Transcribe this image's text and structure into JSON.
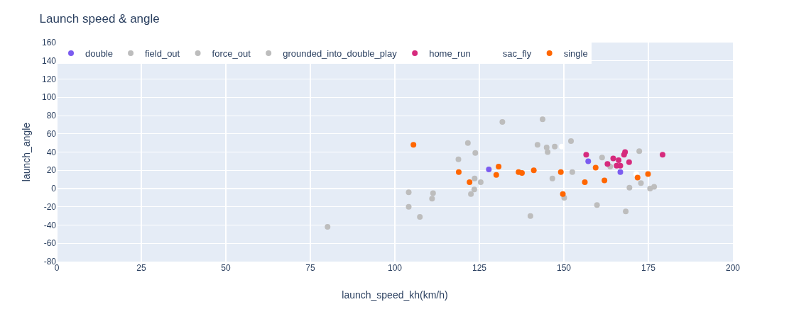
{
  "chart_data": {
    "type": "scatter",
    "title": "Launch speed & angle",
    "xlabel": "launch_speed_kh(km/h)",
    "ylabel": "launch_angle",
    "xlim": [
      0,
      200
    ],
    "xticks": [
      0,
      25,
      50,
      75,
      100,
      125,
      150,
      175,
      200
    ],
    "ylim": [
      -80,
      160
    ],
    "yticks": [
      -80,
      -60,
      -40,
      -20,
      0,
      20,
      40,
      60,
      80,
      100,
      120,
      140,
      160
    ],
    "grid": true,
    "legend": "top left",
    "marker": "circle",
    "series": [
      {
        "name": "double",
        "color": "#7b5cf0",
        "x": [
          127.8,
          157.2,
          166.7
        ],
        "values": [
          21,
          30,
          18
        ]
      },
      {
        "name": "field_out",
        "color": "#bdbdbd",
        "x": [
          121.6,
          123.8,
          118.8,
          131.8,
          143.7,
          142.2,
          144.9,
          145.2,
          147.3,
          152.1,
          161.3,
          163.7,
          172.3,
          146.6,
          152.5,
          169.4,
          172.8,
          176.7,
          150.1,
          140.1
        ],
        "values": [
          50,
          39,
          32,
          73,
          76,
          48,
          45,
          40,
          46,
          52,
          34,
          24,
          41,
          11,
          18,
          1,
          6,
          2,
          -10,
          -30
        ]
      },
      {
        "name": "force_out",
        "color": "#bdbdbd",
        "x": [
          123.6,
          125.4,
          123.5,
          122.5,
          104.1,
          175.5
        ],
        "values": [
          11,
          7,
          -1,
          -6,
          -4,
          0
        ]
      },
      {
        "name": "grounded_into_double_play",
        "color": "#bdbdbd",
        "x": [
          111.3,
          111.0,
          104.1,
          107.4,
          80.1,
          159.8,
          168.3
        ],
        "values": [
          -5,
          -11,
          -20,
          -31,
          -42,
          -18,
          -25
        ]
      },
      {
        "name": "home_run",
        "color": "#d62a7d",
        "x": [
          156.6,
          162.9,
          164.6,
          166.2,
          165.6,
          166.7,
          167.8,
          168.1,
          169.3,
          179.2
        ],
        "values": [
          37,
          27,
          33,
          31,
          25,
          25,
          37,
          40,
          29,
          37
        ]
      },
      {
        "name": "sac_fly",
        "color": "#ffffff",
        "x": [
          149.4,
          171.4
        ],
        "values": [
          46,
          16
        ]
      },
      {
        "name": "single",
        "color": "#ff6600",
        "x": [
          105.5,
          118.9,
          122.1,
          130.7,
          130.0,
          136.6,
          137.6,
          141.1,
          149.1,
          149.7,
          156.2,
          159.4,
          162.0,
          171.8,
          174.9
        ],
        "values": [
          48,
          18,
          7,
          24,
          15,
          18,
          17,
          20,
          18,
          -6,
          7,
          23,
          9,
          12,
          16
        ]
      }
    ]
  }
}
